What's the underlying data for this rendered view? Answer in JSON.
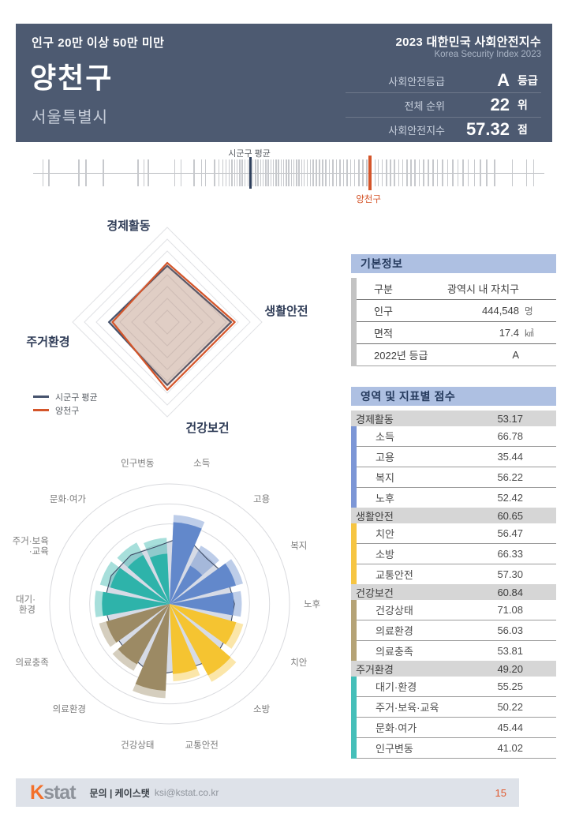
{
  "colors": {
    "header_bg": "#4d5a71",
    "accent_orange": "#d4552a",
    "avg_navy": "#2e3f5c",
    "panel_header_bg": "#aec0e2",
    "category_row_bg": "#d6d6d6",
    "footer_bg": "#dee2e9"
  },
  "header": {
    "badge": "인구 20만 이상 50만 미만",
    "title_ko": "2023 대한민국 사회안전지수",
    "title_en": "Korea Security Index 2023",
    "region": "양천구",
    "province": "서울특별시",
    "stats": [
      {
        "label": "사회안전등급",
        "value": "A",
        "unit": "등급"
      },
      {
        "label": "전체 순위",
        "value": "22",
        "unit": "위"
      },
      {
        "label": "사회안전지수",
        "value": "57.32",
        "unit": "점"
      }
    ]
  },
  "strip_chart": {
    "avg_label": "시군구 평균",
    "region_label": "양천구",
    "avg_pos": 42.3,
    "region_pos": 65.6,
    "ticks": [
      1.8,
      3.0,
      8.8,
      10.2,
      13.6,
      20.4,
      21.6,
      22.4,
      27.6,
      28.8,
      31.4,
      32.8,
      33.6,
      35.4,
      36.2,
      37.0,
      37.6,
      38.2,
      38.8,
      39.3,
      39.8,
      40.3,
      40.8,
      41.3,
      41.9,
      42.9,
      43.4,
      43.9,
      44.4,
      44.9,
      45.4,
      45.9,
      46.4,
      46.9,
      47.4,
      47.9,
      48.4,
      48.9,
      49.4,
      49.9,
      50.4,
      50.9,
      51.4,
      51.9,
      52.4,
      52.9,
      53.5,
      54.1,
      54.7,
      55.3,
      55.9,
      56.5,
      57.1,
      57.8,
      58.5,
      59.2,
      59.9,
      60.6,
      61.3,
      62.0,
      62.8,
      63.6,
      64.4,
      65.2,
      66.0,
      66.8,
      67.4,
      68.2,
      69.0,
      69.8,
      70.6,
      71.4,
      72.2,
      73.0,
      73.8,
      74.6,
      75.4,
      76.3,
      77.2,
      78.1,
      79.0,
      80.0,
      81.0,
      82.0,
      83.0,
      84.0,
      85.0,
      86.2,
      87.4,
      88.6,
      90.2,
      93.6,
      96.4,
      97.8
    ]
  },
  "chart_data": [
    {
      "type": "radar",
      "categories": [
        "경제활동",
        "생활안전",
        "건강보건",
        "주거환경"
      ],
      "series": [
        {
          "name": "시군구 평균",
          "values": [
            50.5,
            57.3,
            56.5,
            52.3
          ],
          "color": "#46536d"
        },
        {
          "name": "양천구",
          "values": [
            53.17,
            60.65,
            60.84,
            49.2
          ],
          "color": "#d4552a"
        }
      ],
      "rings": 8,
      "rmax": 85,
      "legend_position": "bottom-left",
      "grid": "diamond"
    },
    {
      "type": "rose",
      "categories": [
        "소득",
        "고용",
        "복지",
        "노후",
        "치안",
        "소방",
        "교통안전",
        "건강상태",
        "의료환경",
        "의료충족",
        "대기·환경",
        "주거·보육·교육",
        "문화·여가",
        "인구변동"
      ],
      "values": [
        66.78,
        35.44,
        56.22,
        52.42,
        56.47,
        66.33,
        57.3,
        71.08,
        56.03,
        53.81,
        55.25,
        50.22,
        45.44,
        41.02
      ],
      "avg_series_name": "시군구 평균",
      "avg_values": [
        57,
        48,
        52,
        53,
        54,
        58,
        55,
        60,
        53,
        52,
        54,
        53,
        51,
        48
      ],
      "group_of": [
        0,
        0,
        0,
        0,
        1,
        1,
        1,
        2,
        2,
        2,
        3,
        3,
        3,
        3
      ],
      "group_colors": [
        "#6288cb",
        "#f5c431",
        "#9c8a64",
        "#2eb3aa"
      ],
      "avg_area_fill": "#d6dbe6",
      "avg_area_stroke": "#3f4c66",
      "multiline": {
        "10": [
          "대기·",
          "환경"
        ],
        "11": [
          "주거·보육",
          "·교육"
        ]
      },
      "rings": 6,
      "rmax": 98
    }
  ],
  "basic_info": {
    "title": "기본정보",
    "rows": [
      {
        "label": "구분",
        "value": "광역시 내 자치구",
        "unit": ""
      },
      {
        "label": "인구",
        "value": "444,548",
        "unit": "명"
      },
      {
        "label": "면적",
        "value": "17.4",
        "unit": "㎢"
      },
      {
        "label": "2022년 등급",
        "value": "A",
        "unit": ""
      }
    ]
  },
  "scores": {
    "title": "영역 및 지표별 점수",
    "groups": [
      {
        "name": "경제활동",
        "score": "53.17",
        "color": "#7c96d6",
        "items": [
          {
            "name": "소득",
            "score": "66.78"
          },
          {
            "name": "고용",
            "score": "35.44"
          },
          {
            "name": "복지",
            "score": "56.22"
          },
          {
            "name": "노후",
            "score": "52.42"
          }
        ]
      },
      {
        "name": "생활안전",
        "score": "60.65",
        "color": "#f6c542",
        "items": [
          {
            "name": "치안",
            "score": "56.47"
          },
          {
            "name": "소방",
            "score": "66.33"
          },
          {
            "name": "교통안전",
            "score": "57.30"
          }
        ]
      },
      {
        "name": "건강보건",
        "score": "60.84",
        "color": "#b5a376",
        "items": [
          {
            "name": "건강상태",
            "score": "71.08"
          },
          {
            "name": "의료환경",
            "score": "56.03"
          },
          {
            "name": "의료충족",
            "score": "53.81"
          }
        ]
      },
      {
        "name": "주거환경",
        "score": "49.20",
        "color": "#45bfb9",
        "items": [
          {
            "name": "대기·환경",
            "score": "55.25"
          },
          {
            "name": "주거·보육·교육",
            "score": "50.22"
          },
          {
            "name": "문화·여가",
            "score": "45.44"
          },
          {
            "name": "인구변동",
            "score": "41.02"
          }
        ]
      }
    ]
  },
  "footer": {
    "logo_k": "K",
    "logo_stat": "stat",
    "contact": "문의 | 케이스탯",
    "email": "ksi@kstat.co.kr",
    "page": "15"
  }
}
